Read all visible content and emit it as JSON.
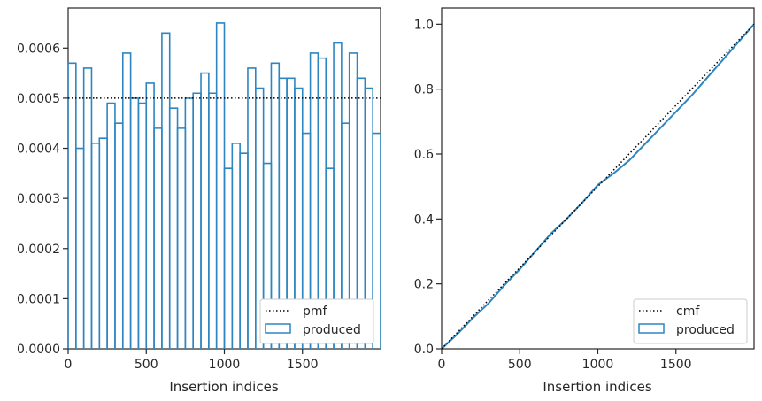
{
  "chart_data": [
    {
      "type": "histogram-step",
      "xlabel": "Insertion indices",
      "ylabel": "",
      "xlim": [
        0,
        2000
      ],
      "ylim": [
        0,
        0.00068
      ],
      "xticks": [
        0,
        500,
        1000,
        1500
      ],
      "xtick_labels": [
        "0",
        "500",
        "1000",
        "1500"
      ],
      "yticks": [
        0,
        0.0001,
        0.0002,
        0.0003,
        0.0004,
        0.0005,
        0.0006
      ],
      "ytick_labels": [
        "0.0000",
        "0.0001",
        "0.0002",
        "0.0003",
        "0.0004",
        "0.0005",
        "0.0006"
      ],
      "grid": false,
      "legend_placement": "lower-right",
      "bin_width": 50,
      "series": [
        {
          "name": "produced",
          "style": "step",
          "color": "#2e86c1",
          "values": [
            0.00057,
            0.0004,
            0.00056,
            0.00041,
            0.00042,
            0.00049,
            0.00045,
            0.00059,
            0.0005,
            0.00049,
            0.00053,
            0.00044,
            0.00063,
            0.00048,
            0.00044,
            0.0005,
            0.00051,
            0.00055,
            0.00051,
            0.00065,
            0.00036,
            0.00041,
            0.00039,
            0.00056,
            0.00052,
            0.00037,
            0.00057,
            0.00054,
            0.00054,
            0.00052,
            0.00043,
            0.00059,
            0.00058,
            0.00036,
            0.00061,
            0.00045,
            0.00059,
            0.00054,
            0.00052,
            0.00043
          ]
        },
        {
          "name": "pmf",
          "style": "dotted",
          "color": "#000000",
          "constant": 0.0005
        }
      ]
    },
    {
      "type": "line",
      "xlabel": "Insertion indices",
      "ylabel": "",
      "xlim": [
        0,
        2000
      ],
      "ylim": [
        0,
        1.05
      ],
      "xticks": [
        0,
        500,
        1000,
        1500
      ],
      "xtick_labels": [
        "0",
        "500",
        "1000",
        "1500"
      ],
      "yticks": [
        0,
        0.2,
        0.4,
        0.6,
        0.8,
        1.0
      ],
      "ytick_labels": [
        "0.0",
        "0.2",
        "0.4",
        "0.6",
        "0.8",
        "1.0"
      ],
      "grid": false,
      "legend_placement": "lower-right",
      "series": [
        {
          "name": "produced",
          "style": "solid",
          "color": "#2e86c1",
          "x": [
            0,
            100,
            200,
            300,
            400,
            500,
            600,
            700,
            800,
            900,
            1000,
            1100,
            1200,
            1300,
            1400,
            1500,
            1600,
            1700,
            1800,
            1900,
            2000
          ],
          "y": [
            0,
            0.045,
            0.095,
            0.14,
            0.195,
            0.245,
            0.3,
            0.355,
            0.4,
            0.45,
            0.505,
            0.54,
            0.58,
            0.63,
            0.68,
            0.73,
            0.78,
            0.835,
            0.89,
            0.945,
            1.0
          ]
        },
        {
          "name": "cmf",
          "style": "dotted",
          "color": "#000000",
          "x": [
            0,
            2000
          ],
          "y": [
            0,
            1.0
          ]
        }
      ]
    }
  ]
}
